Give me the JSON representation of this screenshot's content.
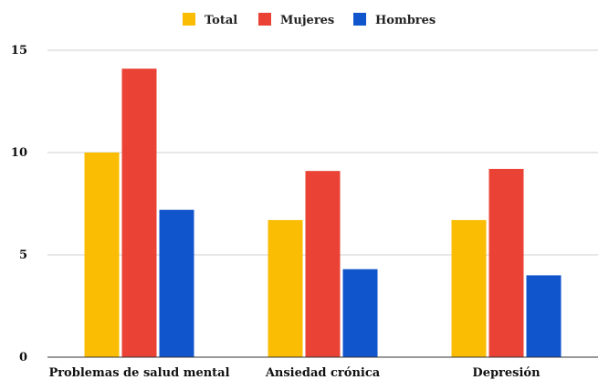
{
  "chart_data": {
    "type": "bar",
    "categories": [
      "Problemas de salud mental",
      "Ansiedad crónica",
      "Depresión"
    ],
    "series": [
      {
        "name": "Total",
        "color": "#FBBC04",
        "values": [
          10.0,
          6.7,
          6.7
        ]
      },
      {
        "name": "Mujeres",
        "color": "#EA4335",
        "values": [
          14.1,
          9.1,
          9.2
        ]
      },
      {
        "name": "Hombres",
        "color": "#1155CC",
        "values": [
          7.2,
          4.3,
          4.0
        ]
      }
    ],
    "ylim": [
      0,
      15
    ],
    "yticks": [
      0,
      5,
      10,
      15
    ],
    "grid": true,
    "legend_position": "top-center",
    "title": "",
    "xlabel": "",
    "ylabel": ""
  }
}
